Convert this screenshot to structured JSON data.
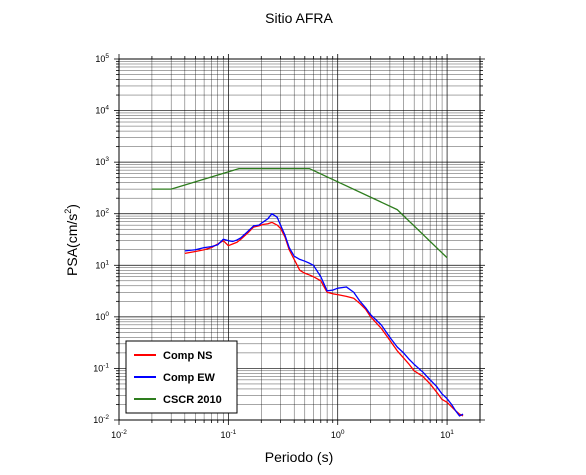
{
  "chart_data": {
    "type": "line",
    "title": "Sitio AFRA",
    "xlabel": "Periodo (s)",
    "ylabel_base": "PSA(cm/s",
    "ylabel_exp": "2",
    "ylabel_close": ")",
    "xscale": "log",
    "yscale": "log",
    "xlim": [
      0.01,
      20
    ],
    "ylim": [
      0.01,
      100000
    ],
    "grid": true,
    "legend_position": "bottom-left",
    "x_ticks": [
      {
        "base": "10",
        "exp": "-2"
      },
      {
        "base": "10",
        "exp": "-1"
      },
      {
        "base": "10",
        "exp": "0"
      },
      {
        "base": "10",
        "exp": "1"
      }
    ],
    "y_ticks": [
      {
        "base": "10",
        "exp": "-2"
      },
      {
        "base": "10",
        "exp": "-1"
      },
      {
        "base": "10",
        "exp": "0"
      },
      {
        "base": "10",
        "exp": "1"
      },
      {
        "base": "10",
        "exp": "2"
      },
      {
        "base": "10",
        "exp": "3"
      },
      {
        "base": "10",
        "exp": "4"
      },
      {
        "base": "10",
        "exp": "5"
      }
    ],
    "series": [
      {
        "name": "Comp NS",
        "color": "#ff0000",
        "x": [
          0.04,
          0.05,
          0.06,
          0.07,
          0.08,
          0.09,
          0.1,
          0.11,
          0.12,
          0.13,
          0.15,
          0.17,
          0.19,
          0.21,
          0.23,
          0.25,
          0.28,
          0.3,
          0.33,
          0.36,
          0.4,
          0.45,
          0.5,
          0.55,
          0.6,
          0.7,
          0.8,
          0.9,
          1.0,
          1.2,
          1.4,
          1.6,
          1.8,
          2.0,
          2.5,
          3.0,
          3.5,
          4.0,
          4.5,
          5.0,
          6.0,
          7.0,
          8.0,
          9.0,
          10.0,
          11.0,
          12.0,
          13.0,
          14.0
        ],
        "y": [
          17,
          18.5,
          20,
          22,
          26,
          30,
          24,
          26,
          28,
          32,
          42,
          55,
          58,
          62,
          64,
          68,
          60,
          52,
          35,
          20,
          13,
          8,
          7,
          6.5,
          6,
          5,
          3,
          2.8,
          2.7,
          2.5,
          2.3,
          1.8,
          1.4,
          1.0,
          0.6,
          0.35,
          0.22,
          0.16,
          0.12,
          0.09,
          0.07,
          0.05,
          0.035,
          0.025,
          0.022,
          0.018,
          0.015,
          0.013,
          0.012
        ]
      },
      {
        "name": "Comp EW",
        "color": "#0000ff",
        "x": [
          0.04,
          0.05,
          0.06,
          0.07,
          0.08,
          0.09,
          0.1,
          0.11,
          0.12,
          0.13,
          0.15,
          0.17,
          0.19,
          0.21,
          0.23,
          0.25,
          0.28,
          0.3,
          0.33,
          0.36,
          0.4,
          0.45,
          0.5,
          0.55,
          0.6,
          0.7,
          0.8,
          0.9,
          1.0,
          1.2,
          1.4,
          1.6,
          1.8,
          2.0,
          2.5,
          3.0,
          3.5,
          4.0,
          4.5,
          5.0,
          6.0,
          7.0,
          8.0,
          9.0,
          10.0,
          11.0,
          12.0,
          13.0,
          14.0
        ],
        "y": [
          19,
          20,
          22,
          23,
          25,
          32,
          30,
          29,
          31,
          34,
          45,
          58,
          60,
          70,
          80,
          100,
          85,
          60,
          38,
          22,
          15,
          13,
          12,
          11,
          10,
          6,
          3.2,
          3.3,
          3.6,
          3.8,
          3.0,
          2.0,
          1.5,
          1.1,
          0.7,
          0.4,
          0.26,
          0.2,
          0.15,
          0.12,
          0.085,
          0.06,
          0.045,
          0.032,
          0.026,
          0.02,
          0.015,
          0.012,
          0.013
        ]
      },
      {
        "name": "CSCR 2010",
        "color": "#2e7d1e",
        "x": [
          0.02,
          0.03,
          0.125,
          0.55,
          3.5,
          10.0
        ],
        "y": [
          300,
          300,
          750,
          750,
          120,
          14
        ]
      }
    ]
  }
}
